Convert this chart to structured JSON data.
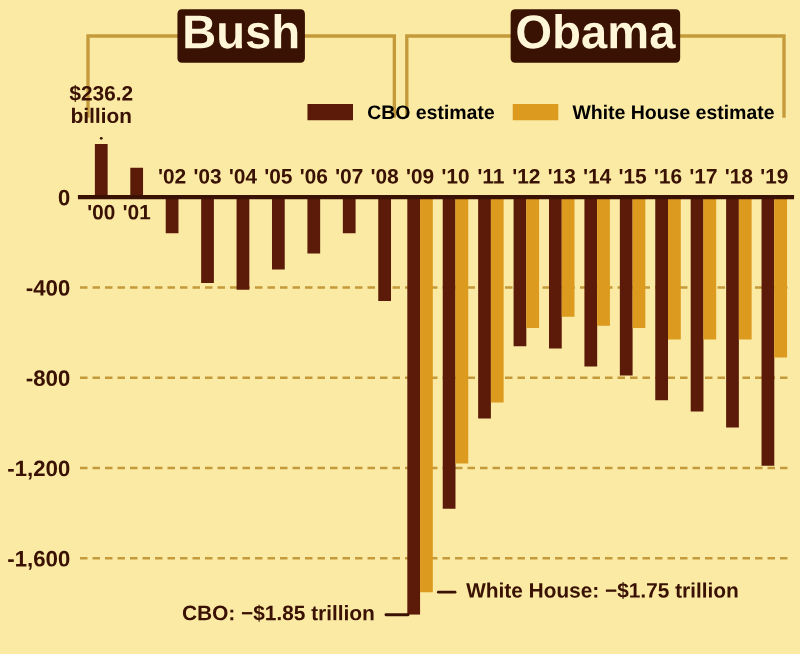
{
  "chart_data": {
    "type": "bar",
    "categories": [
      "'00",
      "'01",
      "'02",
      "'03",
      "'04",
      "'05",
      "'06",
      "'07",
      "'08",
      "'09",
      "'10",
      "'11",
      "'12",
      "'13",
      "'14",
      "'15",
      "'16",
      "'17",
      "'18",
      "'19"
    ],
    "series": [
      {
        "color": "#5c1a08",
        "values": [
          236.2,
          130,
          -160,
          -380,
          -410,
          -320,
          -250,
          -160,
          -460,
          null,
          null,
          null,
          null,
          null,
          null,
          null,
          null,
          null,
          null,
          null
        ]
      },
      {
        "name": "CBO estimate",
        "color": "#5c1a08",
        "values": [
          null,
          null,
          null,
          null,
          null,
          null,
          null,
          null,
          null,
          -1850,
          -1380,
          -980,
          -660,
          -670,
          -750,
          -790,
          -900,
          -950,
          -1020,
          -1190
        ]
      },
      {
        "name": "White House estimate",
        "color": "#dc9a1e",
        "values": [
          null,
          null,
          null,
          null,
          null,
          null,
          null,
          null,
          null,
          -1750,
          -1180,
          -910,
          -580,
          -530,
          -570,
          -580,
          -630,
          -630,
          -630,
          -710
        ]
      }
    ],
    "ylim": [
      -1850,
      236.2
    ],
    "yticks": [
      0,
      -400,
      -800,
      {
        "value": -1200,
        "label": "-1,200"
      },
      {
        "value": -1600,
        "label": "-1,600"
      }
    ],
    "grid": "y",
    "legend": "top right",
    "annotations": [
      "Bush",
      "Obama",
      {
        "text": "$236.2\nbillion",
        "x": "'00",
        "y": 236.2
      },
      {
        "text": "CBO: −$1.85 trillion",
        "x": "'09",
        "y": -1850
      },
      {
        "text": "White House: −$1.75 trillion",
        "x": "'09",
        "y": -1750
      }
    ]
  }
}
